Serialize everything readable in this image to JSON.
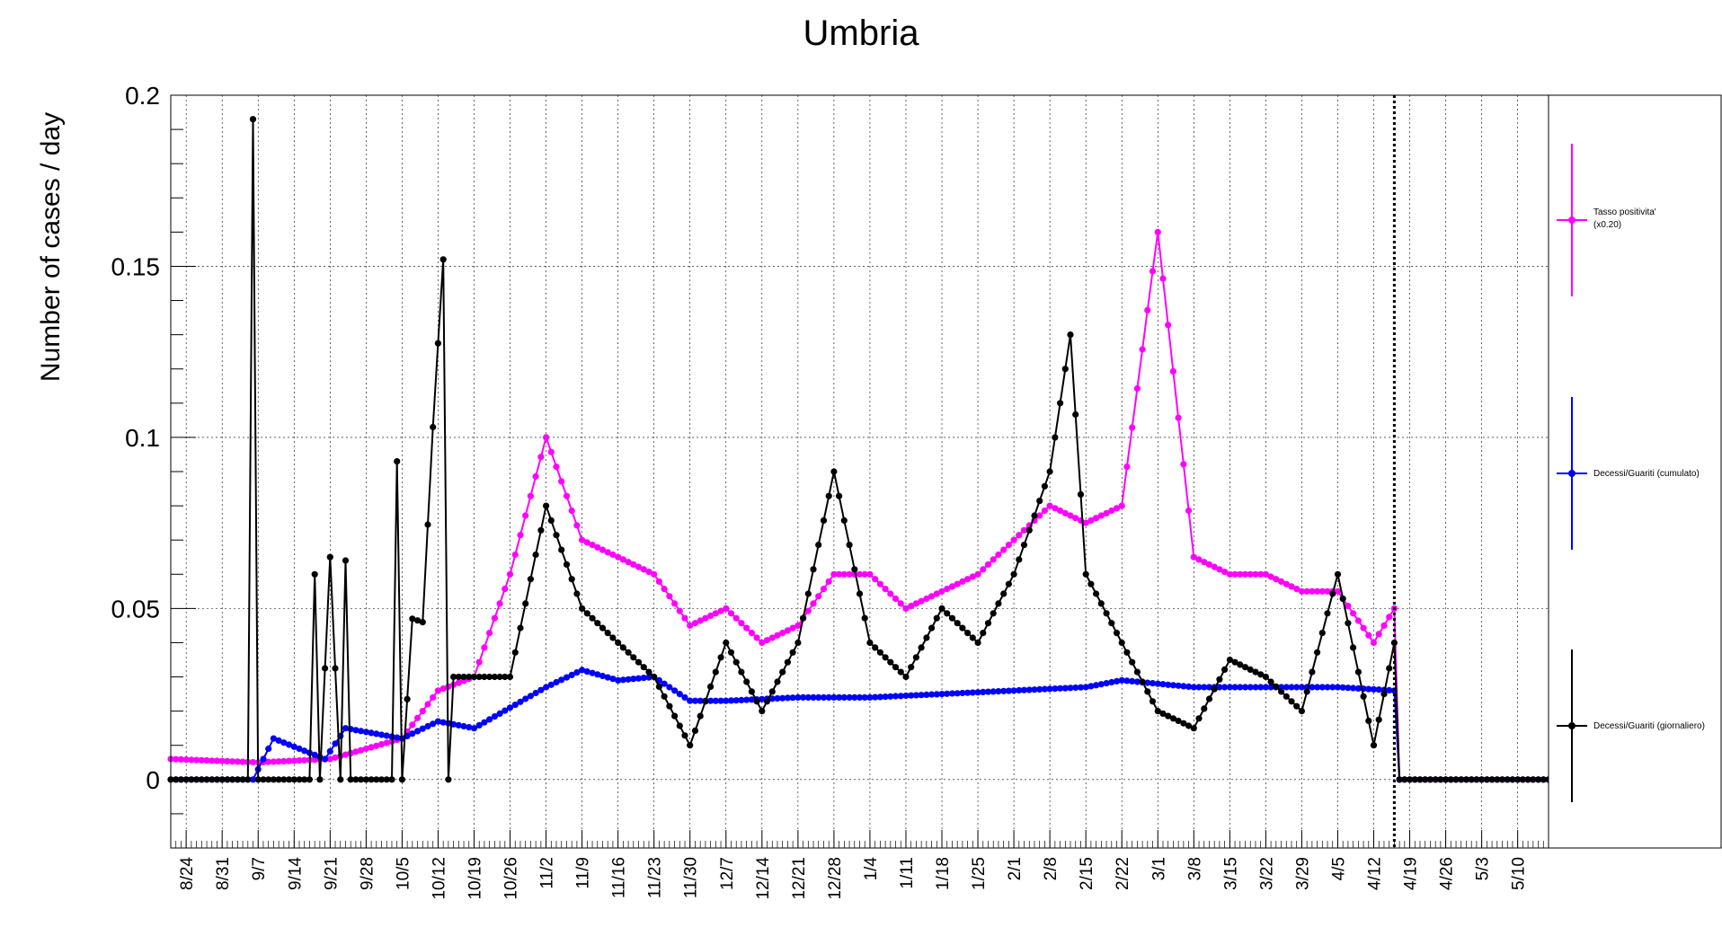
{
  "chart_data": {
    "type": "line",
    "title": "Umbria",
    "ylabel": "Number of cases / day",
    "xlabel": "",
    "ylim": [
      -0.02,
      0.2
    ],
    "yticks": [
      0,
      0.05,
      0.1,
      0.15,
      0.2
    ],
    "ytick_labels": [
      "0",
      "0.05",
      "0.1",
      "0.15",
      "0.2"
    ],
    "date_range": [
      "8/21",
      "5/16"
    ],
    "x_tick_labels": [
      "8/24",
      "8/31",
      "9/7",
      "9/14",
      "9/21",
      "9/28",
      "10/5",
      "10/12",
      "10/19",
      "10/26",
      "11/2",
      "11/9",
      "11/16",
      "11/23",
      "11/30",
      "12/7",
      "12/14",
      "12/21",
      "12/28",
      "1/4",
      "1/11",
      "1/18",
      "1/25",
      "2/1",
      "2/8",
      "2/15",
      "2/22",
      "3/1",
      "3/8",
      "3/15",
      "3/22",
      "3/29",
      "4/5",
      "4/12",
      "4/19",
      "4/26",
      "5/3",
      "5/10"
    ],
    "grid": true,
    "vertical_marker_date": "4/16",
    "legend_position": "right",
    "series": [
      {
        "name": "Tasso positivita'",
        "name_note": "(x0.20)",
        "color": "#ff00ff",
        "x": [
          "8/21",
          "9/7",
          "9/21",
          "10/5",
          "10/12",
          "10/19",
          "10/26",
          "11/2",
          "11/9",
          "11/16",
          "11/23",
          "11/30",
          "12/7",
          "12/14",
          "12/21",
          "12/28",
          "1/4",
          "1/11",
          "1/18",
          "1/25",
          "2/1",
          "2/8",
          "2/15",
          "2/22",
          "3/1",
          "3/8",
          "3/15",
          "3/22",
          "3/29",
          "4/5",
          "4/12",
          "4/16",
          "4/17",
          "5/16"
        ],
        "y": [
          0.006,
          0.005,
          0.006,
          0.012,
          0.026,
          0.03,
          0.06,
          0.1,
          0.07,
          0.065,
          0.06,
          0.045,
          0.05,
          0.04,
          0.045,
          0.06,
          0.06,
          0.05,
          0.055,
          0.06,
          0.07,
          0.08,
          0.075,
          0.08,
          0.16,
          0.065,
          0.06,
          0.06,
          0.055,
          0.055,
          0.04,
          0.05,
          0.0,
          0.0
        ]
      },
      {
        "name": "Decessi/Guariti (cumulato)",
        "color": "#0000ff",
        "x": [
          "8/21",
          "9/6",
          "9/10",
          "9/20",
          "9/24",
          "10/5",
          "10/12",
          "10/19",
          "11/2",
          "11/9",
          "11/16",
          "11/23",
          "11/30",
          "12/7",
          "12/21",
          "1/4",
          "1/18",
          "2/1",
          "2/15",
          "2/22",
          "3/8",
          "4/5",
          "4/16",
          "4/17",
          "5/16"
        ],
        "y": [
          0.0,
          0.0,
          0.012,
          0.006,
          0.015,
          0.012,
          0.017,
          0.015,
          0.027,
          0.032,
          0.029,
          0.03,
          0.023,
          0.023,
          0.024,
          0.024,
          0.025,
          0.026,
          0.027,
          0.029,
          0.027,
          0.027,
          0.026,
          0.0,
          0.0
        ]
      },
      {
        "name": "Decessi/Guariti (giornaliero)",
        "color": "#000000",
        "x": [
          "8/21",
          "9/5",
          "9/6",
          "9/7",
          "9/17",
          "9/18",
          "9/19",
          "9/21",
          "9/23",
          "9/24",
          "9/25",
          "10/3",
          "10/4",
          "10/5",
          "10/7",
          "10/9",
          "10/11",
          "10/13",
          "10/14",
          "10/15",
          "10/19",
          "10/26",
          "11/2",
          "11/9",
          "11/16",
          "11/23",
          "11/30",
          "12/7",
          "12/14",
          "12/21",
          "12/28",
          "1/4",
          "1/11",
          "1/18",
          "1/25",
          "2/1",
          "2/8",
          "2/12",
          "2/15",
          "2/22",
          "3/1",
          "3/8",
          "3/15",
          "3/22",
          "3/29",
          "4/5",
          "4/12",
          "4/16",
          "4/17",
          "5/16"
        ],
        "y": [
          0.0,
          0.0,
          0.193,
          0.0,
          0.0,
          0.06,
          0.0,
          0.065,
          0.0,
          0.064,
          0.0,
          0.0,
          0.093,
          0.0,
          0.047,
          0.046,
          0.103,
          0.152,
          0.0,
          0.03,
          0.03,
          0.03,
          0.08,
          0.05,
          0.04,
          0.03,
          0.01,
          0.04,
          0.02,
          0.04,
          0.09,
          0.04,
          0.03,
          0.05,
          0.04,
          0.06,
          0.09,
          0.13,
          0.06,
          0.04,
          0.02,
          0.015,
          0.035,
          0.03,
          0.02,
          0.06,
          0.01,
          0.04,
          0.0,
          0.0
        ]
      }
    ]
  }
}
